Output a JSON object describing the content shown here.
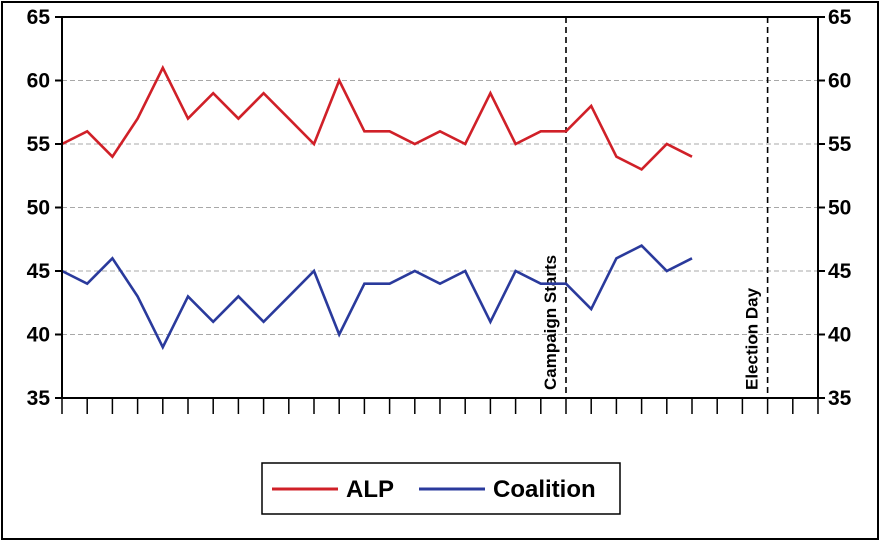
{
  "chart_data": {
    "type": "line",
    "x": [
      1,
      2,
      3,
      4,
      5,
      6,
      7,
      8,
      9,
      10,
      11,
      12,
      13,
      14,
      15,
      16,
      17,
      18,
      19,
      20,
      21,
      22,
      23,
      24,
      25,
      26
    ],
    "series": [
      {
        "name": "ALP",
        "color": "#d02028",
        "values": [
          55,
          56,
          54,
          57,
          61,
          57,
          59,
          57,
          59,
          57,
          55,
          60,
          56,
          56,
          55,
          56,
          55,
          59,
          55,
          56,
          56,
          58,
          54,
          53,
          55,
          54
        ]
      },
      {
        "name": "Coalition",
        "color": "#2a3a9c",
        "values": [
          45,
          44,
          46,
          43,
          39,
          43,
          41,
          43,
          41,
          43,
          45,
          40,
          44,
          44,
          45,
          44,
          45,
          41,
          45,
          44,
          44,
          42,
          46,
          47,
          45,
          46
        ]
      }
    ],
    "ylim": [
      35,
      65
    ],
    "yticks": [
      35,
      40,
      45,
      50,
      55,
      60,
      65
    ],
    "xlim": [
      1,
      31
    ],
    "grid": true,
    "legend_position": "bottom",
    "annotations": [
      {
        "label": "Campaign Starts",
        "x": 21
      },
      {
        "label": "Election Day",
        "x": 29
      }
    ]
  }
}
